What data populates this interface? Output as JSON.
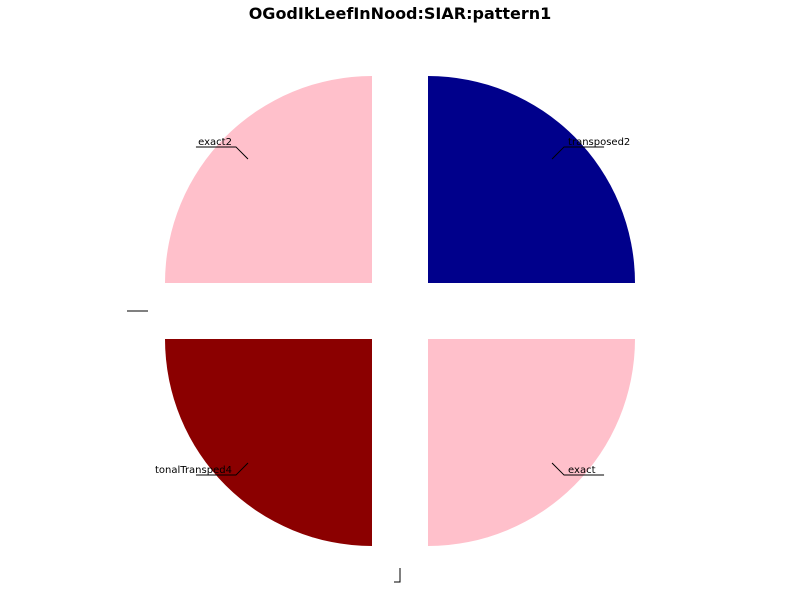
{
  "chart_data": {
    "type": "pie",
    "title": "OGodIkLeefInNood:SIAR:pattern1",
    "slices": [
      {
        "label": "transposed2",
        "value": 1,
        "color": "#00008b"
      },
      {
        "label": "exact",
        "value": 1,
        "color": "#ffc0cb"
      },
      {
        "label": "",
        "value": 0,
        "color": "#ffffff"
      },
      {
        "label": "tonalTransped4",
        "value": 1,
        "color": "#8b0000"
      },
      {
        "label": "",
        "value": 0,
        "color": "#ffffff"
      },
      {
        "label": "exact2",
        "value": 1,
        "color": "#ffc0cb"
      },
      {
        "label": "",
        "value": 0,
        "color": "#ffffff"
      }
    ],
    "start_angle_deg": 90,
    "direction": "clockwise",
    "exploded": true,
    "legend": "none"
  }
}
